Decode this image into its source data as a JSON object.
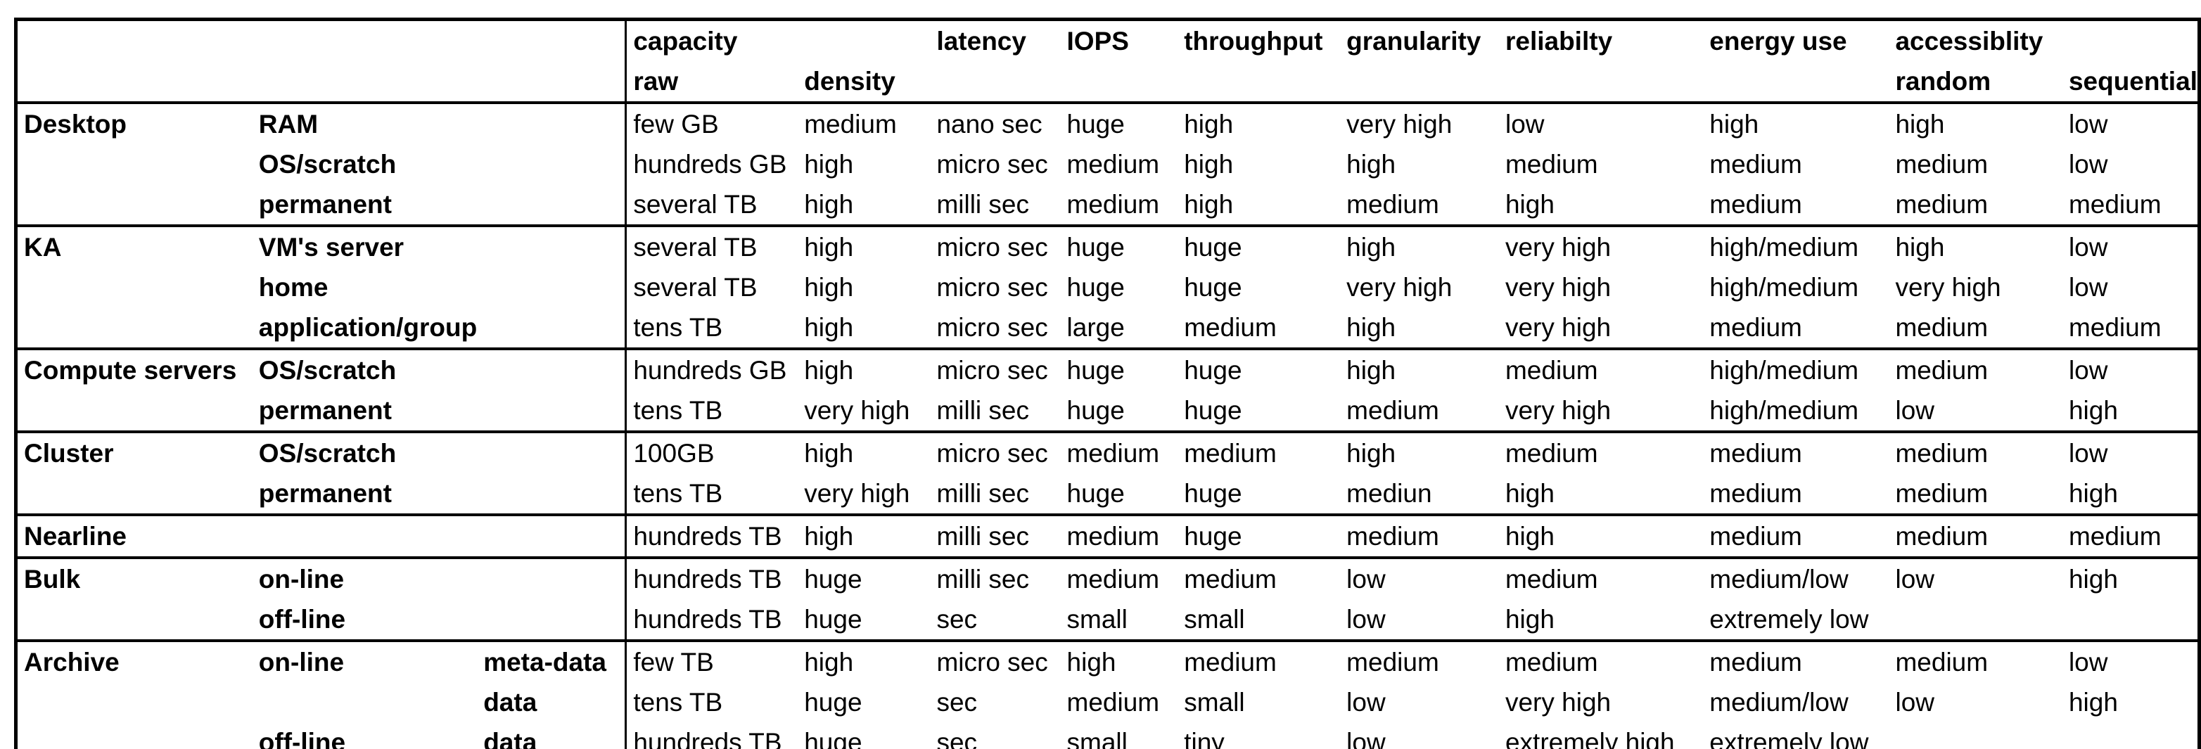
{
  "colors": {
    "background": "#ffffff",
    "border": "#000000",
    "text": "#000000"
  },
  "table": {
    "header": {
      "line1": {
        "capacity": "capacity",
        "latency": "latency",
        "iops": "IOPS",
        "throughput": "throughput",
        "granularity": "granularity",
        "reliability": "reliabilty",
        "energy": "energy use",
        "accessibility": "accessiblity"
      },
      "line2": {
        "raw": "raw",
        "density": "density",
        "random": "random",
        "sequential": "sequential"
      }
    },
    "rows": [
      {
        "group_start": true,
        "cells": [
          "Desktop",
          "RAM",
          "",
          "few GB",
          "medium",
          "nano sec",
          "huge",
          "high",
          "very high",
          "low",
          "high",
          "high",
          "low"
        ]
      },
      {
        "group_start": false,
        "cells": [
          "",
          "OS/scratch",
          "",
          "hundreds GB",
          "high",
          "micro sec",
          "medium",
          "high",
          "high",
          "medium",
          "medium",
          "medium",
          "low"
        ]
      },
      {
        "group_start": false,
        "cells": [
          "",
          "permanent",
          "",
          "several TB",
          "high",
          "milli sec",
          "medium",
          "high",
          "medium",
          "high",
          "medium",
          "medium",
          "medium"
        ]
      },
      {
        "group_start": true,
        "cells": [
          "KA",
          "VM's server",
          "",
          "several TB",
          "high",
          "micro sec",
          "huge",
          "huge",
          "high",
          "very high",
          "high/medium",
          "high",
          "low"
        ]
      },
      {
        "group_start": false,
        "cells": [
          "",
          "home",
          "",
          "several TB",
          "high",
          "micro sec",
          "huge",
          "huge",
          "very high",
          "very high",
          "high/medium",
          "very high",
          "low"
        ]
      },
      {
        "group_start": false,
        "cells": [
          "",
          "application/group",
          "",
          "tens TB",
          "high",
          "micro sec",
          "large",
          "medium",
          "high",
          "very high",
          "medium",
          "medium",
          "medium"
        ]
      },
      {
        "group_start": true,
        "cells": [
          "Compute servers",
          "OS/scratch",
          "",
          "hundreds GB",
          "high",
          "micro sec",
          "huge",
          "huge",
          "high",
          "medium",
          "high/medium",
          "medium",
          "low"
        ]
      },
      {
        "group_start": false,
        "cells": [
          "",
          "permanent",
          "",
          "tens TB",
          "very high",
          "milli sec",
          "huge",
          "huge",
          "medium",
          "very high",
          "high/medium",
          "low",
          "high"
        ]
      },
      {
        "group_start": true,
        "cells": [
          "Cluster",
          "OS/scratch",
          "",
          "100GB",
          "high",
          "micro sec",
          "medium",
          "medium",
          "high",
          "medium",
          "medium",
          "medium",
          "low"
        ]
      },
      {
        "group_start": false,
        "cells": [
          "",
          "permanent",
          "",
          "tens TB",
          "very high",
          "milli sec",
          "huge",
          "huge",
          "mediun",
          "high",
          "medium",
          "medium",
          "high"
        ]
      },
      {
        "group_start": true,
        "cells": [
          "Nearline",
          "",
          "",
          "hundreds TB",
          "high",
          "milli sec",
          "medium",
          "huge",
          "medium",
          "high",
          "medium",
          "medium",
          "medium"
        ]
      },
      {
        "group_start": true,
        "cells": [
          "Bulk",
          "on-line",
          "",
          "hundreds TB",
          "huge",
          "milli sec",
          "medium",
          "medium",
          "low",
          "medium",
          "medium/low",
          "low",
          "high"
        ]
      },
      {
        "group_start": false,
        "cells": [
          "",
          "off-line",
          "",
          "hundreds TB",
          "huge",
          "sec",
          "small",
          "small",
          "low",
          "high",
          "extremely low",
          "",
          ""
        ]
      },
      {
        "group_start": true,
        "cells": [
          "Archive",
          "on-line",
          "meta-data",
          "few TB",
          "high",
          "micro sec",
          "high",
          "medium",
          "medium",
          "medium",
          "medium",
          "medium",
          "low"
        ]
      },
      {
        "group_start": false,
        "cells": [
          "",
          "",
          "data",
          "tens TB",
          "huge",
          "sec",
          "medium",
          "small",
          "low",
          "very high",
          "medium/low",
          "low",
          "high"
        ]
      },
      {
        "group_start": false,
        "cells": [
          "",
          "off-line",
          "data",
          "hundreds TB",
          "huge",
          "sec",
          "small",
          "tiny",
          "low",
          "extremely high",
          "extremely low",
          "",
          ""
        ]
      }
    ]
  }
}
